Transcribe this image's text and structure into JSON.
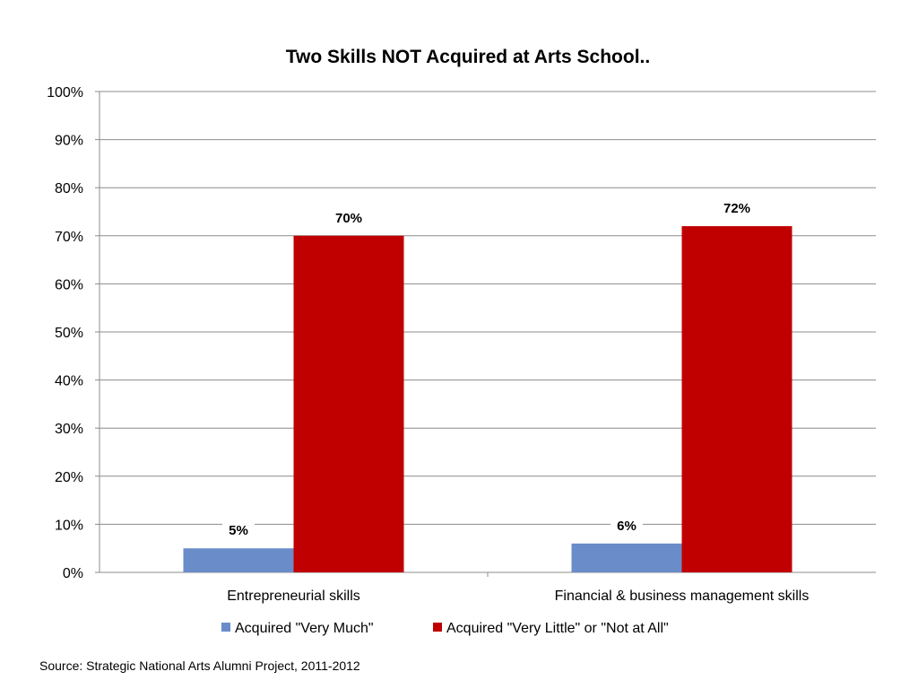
{
  "chart_data": {
    "type": "bar",
    "title": "Two Skills NOT Acquired at Arts School..",
    "xlabel": "",
    "ylabel": "",
    "categories": [
      "Entrepreneurial skills",
      "Financial & business management skills"
    ],
    "series": [
      {
        "name": "Acquired \"Very Much\"",
        "values": [
          5,
          6
        ],
        "labels": [
          "5%",
          "6%"
        ],
        "color": "#6a8cc8"
      },
      {
        "name": "Acquired \"Very Little\" or \"Not at All\"",
        "values": [
          70,
          72
        ],
        "labels": [
          "70%",
          "72%"
        ],
        "color": "#c00000"
      }
    ],
    "ylim": [
      0,
      100
    ],
    "yticks": [
      0,
      10,
      20,
      30,
      40,
      50,
      60,
      70,
      80,
      90,
      100
    ],
    "ytick_labels": [
      "0%",
      "10%",
      "20%",
      "30%",
      "40%",
      "50%",
      "60%",
      "70%",
      "80%",
      "90%",
      "100%"
    ],
    "grid": true,
    "legend_position": "bottom"
  },
  "footer": {
    "source": "Source: Strategic National Arts Alumni Project, 2011-2012"
  }
}
